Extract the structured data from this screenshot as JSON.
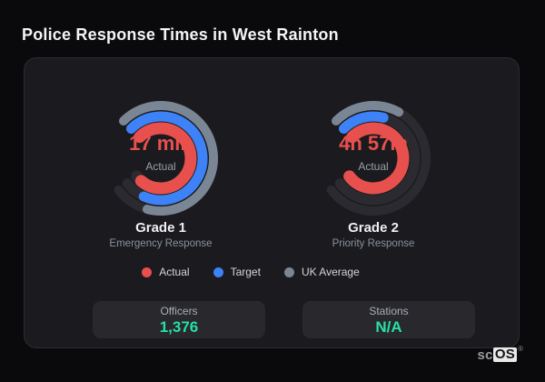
{
  "header": {
    "title": "Police Response Times in West Rainton"
  },
  "colors": {
    "actual": "#e8504d",
    "target": "#3d82f6",
    "uk_average": "#7b8695",
    "stat_value": "#27e0a4",
    "track": "#2a2a30"
  },
  "chart_data": {
    "type": "radial-gauge-pair",
    "start_angle_deg": 315,
    "range_sweep_deg": 278,
    "track_color": "#2a2a30",
    "legend": [
      {
        "label": "Actual",
        "color": "#e8504d"
      },
      {
        "label": "Target",
        "color": "#3d82f6"
      },
      {
        "label": "UK Average",
        "color": "#7b8695"
      }
    ],
    "gauges": [
      {
        "title": "Grade 1",
        "subtitle": "Emergency Response",
        "center_value": "17 min",
        "center_label": "Actual",
        "rings": [
          {
            "name": "UK Average",
            "color": "#7b8695",
            "radius": 58,
            "width": 10,
            "sweep": 240
          },
          {
            "name": "Target",
            "color": "#3d82f6",
            "radius": 46,
            "width": 11,
            "sweep": 249
          },
          {
            "name": "Actual",
            "color": "#e8504d",
            "radius": 33,
            "width": 13,
            "sweep": 266
          }
        ]
      },
      {
        "title": "Grade 2",
        "subtitle": "Priority Response",
        "center_value": "4h 57m",
        "center_label": "Actual",
        "rings": [
          {
            "name": "UK Average",
            "color": "#7b8695",
            "radius": 58,
            "width": 10,
            "sweep": 74
          },
          {
            "name": "Target",
            "color": "#3d82f6",
            "radius": 46,
            "width": 11,
            "sweep": 59
          },
          {
            "name": "Actual",
            "color": "#e8504d",
            "radius": 33,
            "width": 13,
            "sweep": 278
          }
        ]
      }
    ],
    "stats": [
      {
        "label": "Officers",
        "value": "1,376"
      },
      {
        "label": "Stations",
        "value": "N/A"
      }
    ]
  },
  "footer": {
    "brand_prefix": "sc",
    "brand_suffix": "OS",
    "registered": "®"
  }
}
